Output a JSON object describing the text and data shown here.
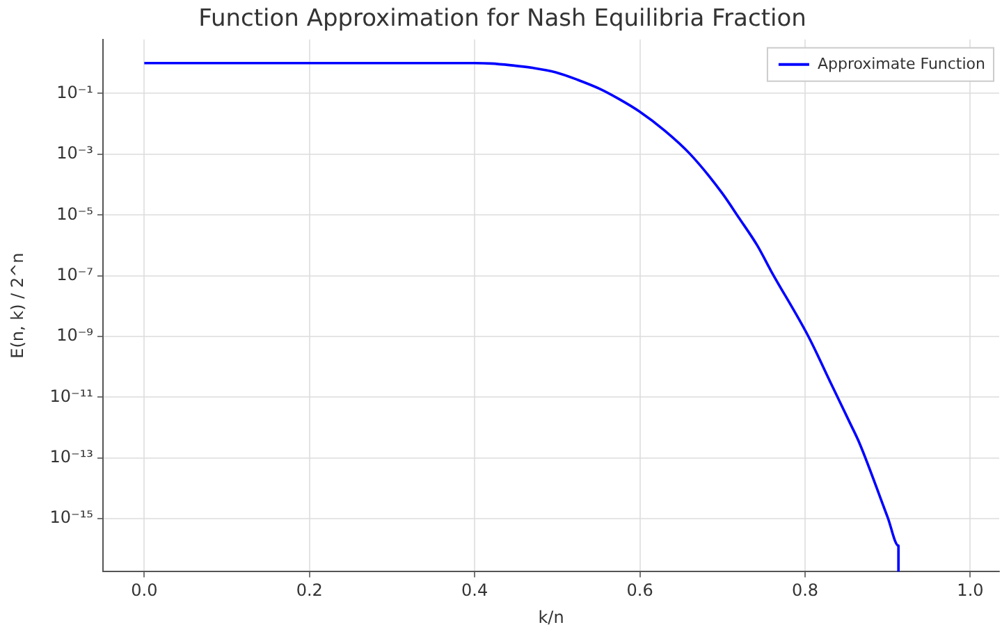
{
  "chart_data": {
    "type": "line",
    "title": "Function Approximation for Nash Equilibria Fraction",
    "xlabel": "k/n",
    "ylabel": "E(n, k) / 2^n",
    "log": "y",
    "grid": true,
    "legend": "top right",
    "marker": "none",
    "line_style": "solid",
    "xlim": [
      -0.05,
      1.035
    ],
    "ylim": [
      1.8e-17,
      6
    ],
    "xticks": [
      {
        "value": 0,
        "label": "0.0"
      },
      {
        "value": 0.2,
        "label": "0.2"
      },
      {
        "value": 0.4,
        "label": "0.4"
      },
      {
        "value": 0.6,
        "label": "0.6"
      },
      {
        "value": 0.8,
        "label": "0.8"
      },
      {
        "value": 1,
        "label": "1.0"
      }
    ],
    "yticks": [
      {
        "value": 0.1,
        "label": "10⁻¹"
      },
      {
        "value": 0.001,
        "label": "10⁻³"
      },
      {
        "value": 1e-05,
        "label": "10⁻⁵"
      },
      {
        "value": 1e-07,
        "label": "10⁻⁷"
      },
      {
        "value": 1e-09,
        "label": "10⁻⁹"
      },
      {
        "value": 1e-11,
        "label": "10⁻¹¹"
      },
      {
        "value": 1e-13,
        "label": "10⁻¹³"
      },
      {
        "value": 1e-15,
        "label": "10⁻¹⁵"
      }
    ],
    "x": [
      0,
      0.1,
      0.2,
      0.3,
      0.4,
      0.42,
      0.444,
      0.47,
      0.498,
      0.525,
      0.552,
      0.575,
      0.599,
      0.63,
      0.661,
      0.699,
      0.72,
      0.742,
      0.759,
      0.804,
      0.832,
      0.855,
      0.866,
      0.9,
      0.913,
      0.913
    ],
    "series": [
      {
        "name": "Approximate Function",
        "color": "#0000ff",
        "values": [
          1,
          1,
          1,
          1,
          1,
          0.97,
          0.85,
          0.7,
          0.5,
          0.28,
          0.14,
          0.065,
          0.026,
          0.006,
          0.001,
          5.5e-05,
          8e-06,
          1e-06,
          1.4e-07,
          1e-09,
          2.6e-11,
          1.3e-12,
          3e-13,
          1.1e-15,
          1.3e-16,
          1.8e-17
        ]
      }
    ]
  }
}
